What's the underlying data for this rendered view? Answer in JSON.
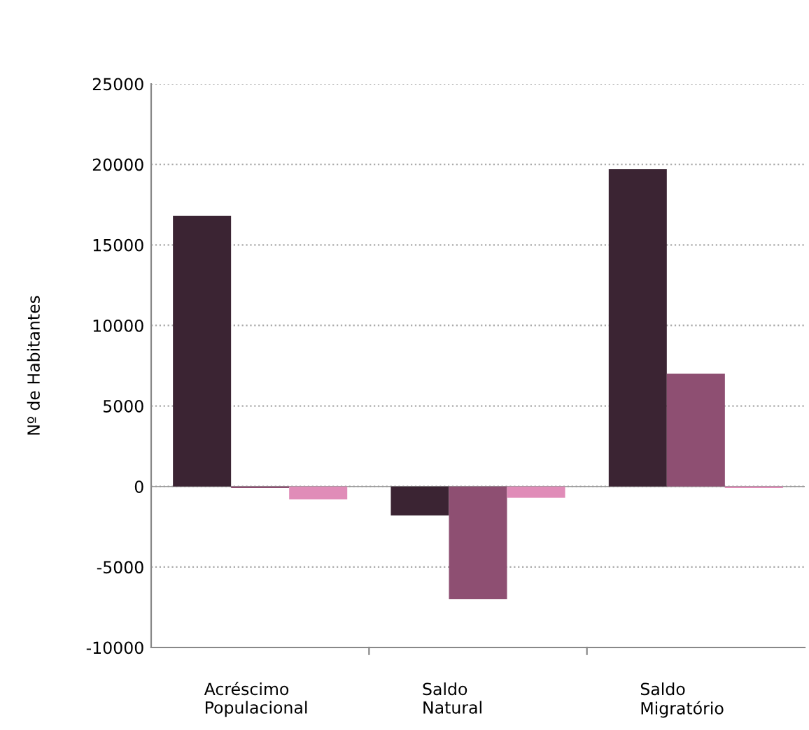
{
  "chart_data": {
    "type": "bar",
    "ylabel": "Nº de Habitantes",
    "categories": [
      "Acréscimo\nPopulacional",
      "Saldo\nNatural",
      "Saldo\nMigratório"
    ],
    "series": [
      {
        "color": "#3b2433",
        "values": [
          16800,
          -1800,
          19700
        ]
      },
      {
        "color": "#8e4f72",
        "values": [
          -100,
          -7000,
          7000
        ]
      },
      {
        "color": "#e08cb8",
        "values": [
          -800,
          -700,
          -100
        ]
      }
    ],
    "ylim": [
      -10000,
      25000
    ],
    "yticks": [
      -10000,
      -5000,
      0,
      5000,
      10000,
      15000,
      20000,
      25000
    ],
    "grid": "y",
    "legend": false,
    "ref_lines": [
      {
        "axis": "y",
        "value": 0,
        "label": null,
        "color": "#999999"
      }
    ]
  }
}
